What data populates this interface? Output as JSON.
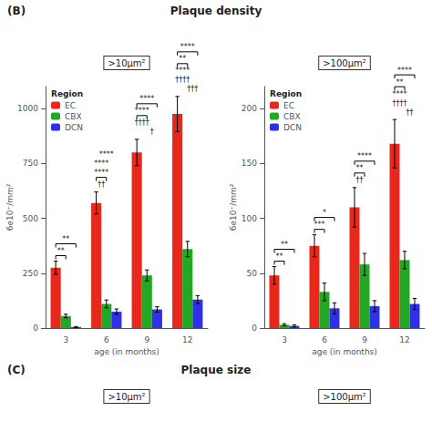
{
  "panel_label": "(B)",
  "title": "Plaque density",
  "chart_data": [
    {
      "type": "bar",
      "title": ">10μm²",
      "xlabel": "age (in months)",
      "ylabel": "6e10⁺/mm²",
      "categories": [
        "3",
        "6",
        "9",
        "12"
      ],
      "series": [
        {
          "name": "EC",
          "color": "#e8281a",
          "values": [
            275,
            570,
            800,
            975
          ],
          "errors": [
            30,
            50,
            60,
            80
          ]
        },
        {
          "name": "CBX",
          "color": "#22a822",
          "values": [
            55,
            110,
            240,
            360
          ],
          "errors": [
            8,
            18,
            25,
            35
          ]
        },
        {
          "name": "DCN",
          "color": "#3030e8",
          "values": [
            5,
            75,
            85,
            130
          ],
          "errors": [
            2,
            12,
            12,
            18
          ]
        }
      ],
      "ylim": [
        0,
        1100
      ],
      "yticks": [
        0,
        250,
        500,
        750,
        1000
      ],
      "grid": false,
      "legend": "upper left",
      "legend_title": "Region",
      "annotations": [
        {
          "text": "**",
          "category": "3",
          "series": [
            "EC",
            "CBX"
          ],
          "bracket": true
        },
        {
          "text": "**",
          "category": "3",
          "series": [
            "EC",
            "DCN"
          ],
          "bracket": true
        },
        {
          "text": "††",
          "category": "6",
          "series": [
            "EC",
            "CBX"
          ],
          "bracket": false
        },
        {
          "text": "****",
          "category": "6",
          "series": [
            "EC",
            "CBX"
          ],
          "bracket": true
        },
        {
          "text": "****",
          "category": "6",
          "series": [
            "EC",
            "CBX"
          ],
          "bracket": false
        },
        {
          "text": "****",
          "category": "6",
          "series": [
            "CBX"
          ],
          "bracket": false
        },
        {
          "text": "†",
          "category": "9",
          "series": [
            "CBX",
            "DCN"
          ],
          "bracket": false
        },
        {
          "text": "††††",
          "category": "9",
          "series": [
            "EC",
            "CBX"
          ],
          "bracket": false
        },
        {
          "text": "****",
          "category": "9",
          "series": [
            "EC",
            "CBX"
          ],
          "bracket": true
        },
        {
          "text": "****",
          "category": "9",
          "series": [
            "EC",
            "DCN"
          ],
          "bracket": true
        },
        {
          "text": "†††",
          "category": "12",
          "series": [
            "CBX",
            "DCN"
          ],
          "bracket": false
        },
        {
          "text": "††††",
          "category": "12",
          "series": [
            "EC",
            "CBX"
          ],
          "bracket": false
        },
        {
          "text": "****",
          "category": "12",
          "series": [
            "EC",
            "CBX"
          ],
          "bracket": false
        },
        {
          "text": "**",
          "category": "12",
          "series": [
            "EC",
            "CBX"
          ],
          "bracket": true
        },
        {
          "text": "****",
          "category": "12",
          "series": [
            "EC",
            "DCN"
          ],
          "bracket": true
        }
      ]
    },
    {
      "type": "bar",
      "title": ">100μm²",
      "xlabel": "age (in months)",
      "ylabel": "6e10⁺/mm²",
      "categories": [
        "3",
        "6",
        "9",
        "12"
      ],
      "series": [
        {
          "name": "EC",
          "color": "#e8281a",
          "values": [
            48,
            75,
            110,
            168
          ],
          "errors": [
            8,
            10,
            18,
            22
          ]
        },
        {
          "name": "CBX",
          "color": "#22a822",
          "values": [
            3,
            33,
            58,
            62
          ],
          "errors": [
            1,
            8,
            10,
            8
          ]
        },
        {
          "name": "DCN",
          "color": "#3030e8",
          "values": [
            2,
            18,
            20,
            22
          ],
          "errors": [
            1,
            5,
            5,
            5
          ]
        }
      ],
      "ylim": [
        0,
        220
      ],
      "yticks": [
        0,
        50,
        100,
        150,
        200
      ],
      "grid": false,
      "legend": "upper left",
      "legend_title": "Region",
      "annotations": [
        {
          "text": "**",
          "category": "3",
          "series": [
            "EC",
            "CBX"
          ],
          "bracket": true
        },
        {
          "text": "**",
          "category": "3",
          "series": [
            "EC",
            "DCN"
          ],
          "bracket": true
        },
        {
          "text": "***",
          "category": "6",
          "series": [
            "EC",
            "CBX"
          ],
          "bracket": true
        },
        {
          "text": "*",
          "category": "6",
          "series": [
            "EC",
            "DCN"
          ],
          "bracket": true
        },
        {
          "text": "††",
          "category": "9",
          "series": [
            "EC",
            "CBX"
          ],
          "bracket": false
        },
        {
          "text": "**",
          "category": "9",
          "series": [
            "EC",
            "CBX"
          ],
          "bracket": true
        },
        {
          "text": "****",
          "category": "9",
          "series": [
            "EC",
            "DCN"
          ],
          "bracket": true
        },
        {
          "text": "††",
          "category": "12",
          "series": [
            "CBX",
            "DCN"
          ],
          "bracket": false
        },
        {
          "text": "††††",
          "category": "12",
          "series": [
            "EC",
            "CBX"
          ],
          "bracket": false
        },
        {
          "text": "****",
          "category": "12",
          "series": [
            "EC",
            "CBX"
          ],
          "bracket": false
        },
        {
          "text": "**",
          "category": "12",
          "series": [
            "EC",
            "CBX"
          ],
          "bracket": true
        },
        {
          "text": "****",
          "category": "12",
          "series": [
            "EC",
            "DCN"
          ],
          "bracket": true
        }
      ]
    }
  ],
  "panel_C": {
    "panel_label": "(C)",
    "title": "Plaque size",
    "subtitles": [
      ">10μm²",
      ">100μm²"
    ]
  }
}
